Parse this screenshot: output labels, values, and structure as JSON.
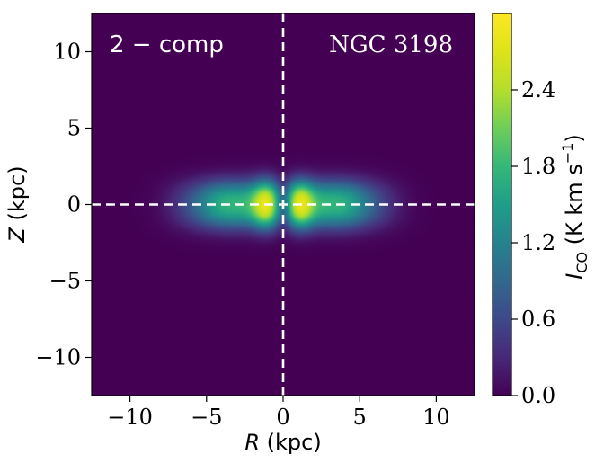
{
  "chart_data": {
    "type": "heatmap",
    "xlabel": {
      "var": "R",
      "unit": " (kpc)"
    },
    "ylabel": {
      "var": "Z",
      "unit": " (kpc)"
    },
    "xlim": [
      -12.5,
      12.5
    ],
    "ylim": [
      -12.5,
      12.5
    ],
    "xticks": [
      -10,
      -5,
      0,
      5,
      10
    ],
    "yticks": [
      -10,
      -5,
      0,
      5,
      10
    ],
    "xtick_labels": [
      "−10",
      "−5",
      "0",
      "5",
      "10"
    ],
    "ytick_labels": [
      "−10",
      "−5",
      "0",
      "5",
      "10"
    ],
    "colorbar": {
      "label_main": "I",
      "label_sub": "CO",
      "label_unit_pre": " (K km s",
      "label_sup": "−1",
      "label_unit_post": ")",
      "min": 0.0,
      "max": 3.0,
      "ticks": [
        0.0,
        0.6,
        1.2,
        1.8,
        2.4
      ],
      "tick_labels": [
        "0.0",
        "0.6",
        "1.2",
        "1.8",
        "2.4"
      ],
      "colormap": "viridis"
    },
    "annotations": {
      "model": "2 − comp",
      "galaxy": "NGC 3198"
    },
    "reference_lines": {
      "x": 0,
      "y": 0,
      "style": "dashed",
      "color": "#ffffff"
    },
    "emission_model": {
      "peak_R_kpc": [
        -1.2,
        1.2
      ],
      "peak_intensity": 3.0,
      "disk_extent_R_kpc": 8.5,
      "disk_extent_Z_kpc": 2.2
    }
  }
}
